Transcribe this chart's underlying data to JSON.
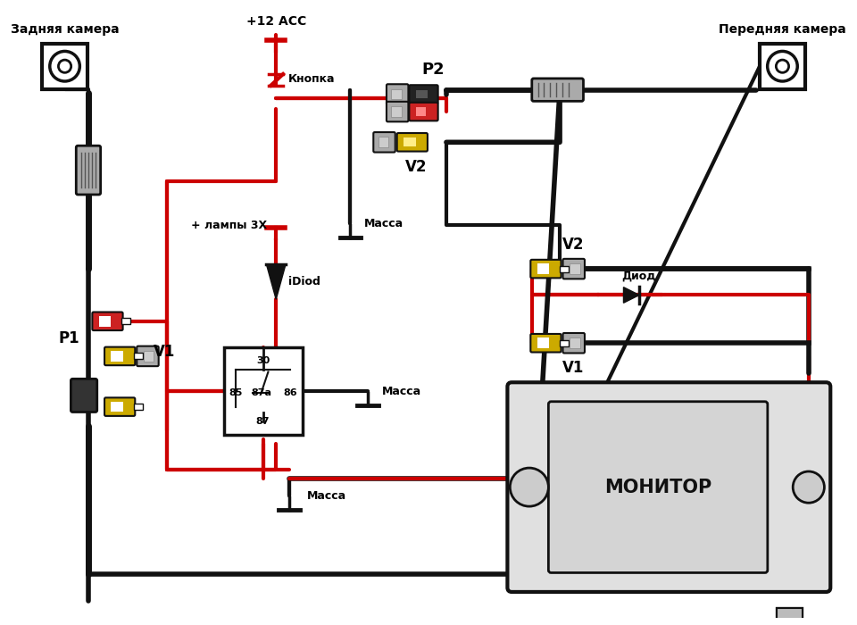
{
  "bg": "#ffffff",
  "RED": "#cc0000",
  "BLACK": "#111111",
  "YELLOW": "#ccaa00",
  "LGRAY": "#aaaaaa",
  "DGRAY": "#555555",
  "labels": {
    "rear_camera": "Задняя камера",
    "front_camera": "Передняя камера",
    "acc": "+12 ACC",
    "button": "Кнопка",
    "lamp_plus": "+ лампы 3X",
    "idiod": "iDiod",
    "massa": "Масса",
    "diod": "Диод",
    "monitor": "МОНИТОР",
    "p1": "P1",
    "p2": "P2",
    "v1": "V1",
    "v2": "V2",
    "r30": "30",
    "r85": "85",
    "r86": "86",
    "r87a": "87a",
    "r87": "87"
  }
}
